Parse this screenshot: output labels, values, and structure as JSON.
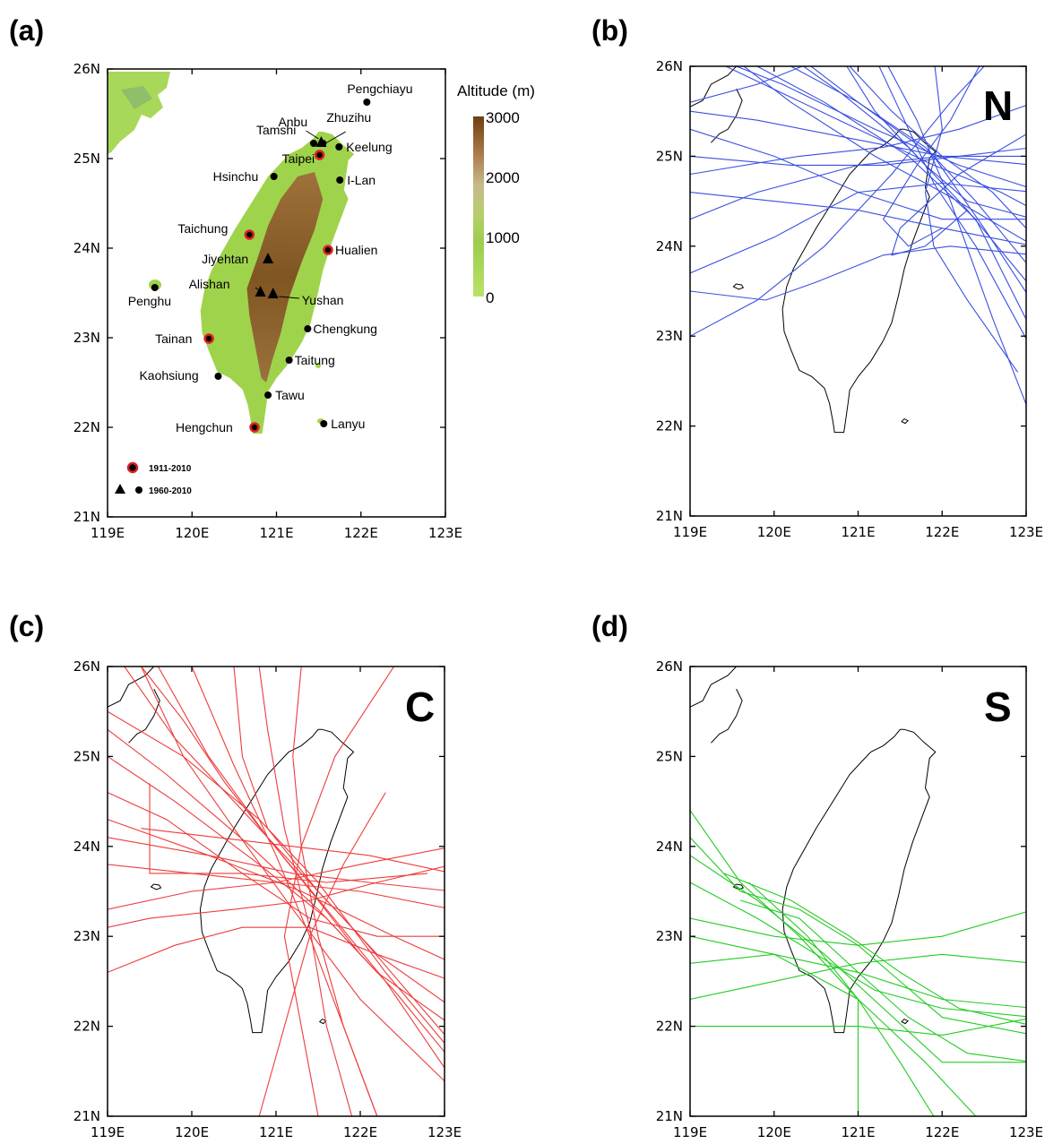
{
  "panels": [
    {
      "id": "a",
      "label": "(a)"
    },
    {
      "id": "b",
      "label": "(b)",
      "letter": "N",
      "track_color": "#3a4fe0"
    },
    {
      "id": "c",
      "label": "(c)",
      "letter": "C",
      "track_color": "#ee3b3b"
    },
    {
      "id": "d",
      "label": "(d)",
      "letter": "S",
      "track_color": "#22cc22"
    }
  ],
  "axes": {
    "lon_ticks": [
      "119E",
      "120E",
      "121E",
      "122E",
      "123E"
    ],
    "lat_ticks": [
      "21N",
      "22N",
      "23N",
      "24N",
      "25N",
      "26N"
    ],
    "lon_range": [
      119,
      123
    ],
    "lat_range": [
      21,
      26
    ]
  },
  "panel_c_last_lon_label": "123E",
  "colorbar": {
    "title": "Altitude (m)",
    "ticks": [
      "3000",
      "2000",
      "1000",
      "0"
    ],
    "colors": [
      "#8c5a1e",
      "#a9784a",
      "#c8b98a",
      "#b5cf6b",
      "#9ccd4e",
      "#b9e26a"
    ]
  },
  "legend": [
    {
      "label": "1911-2010",
      "marker": "red-circle"
    },
    {
      "label": "1960-2010",
      "marker": "triangle-and-dot"
    }
  ],
  "stations": [
    {
      "name": "Pengchiayu",
      "lon": 122.07,
      "lat": 25.63,
      "type": "dot"
    },
    {
      "name": "Anbu",
      "lon": 121.53,
      "lat": 25.18,
      "type": "tri"
    },
    {
      "name": "Zhuzihu",
      "lon": 121.55,
      "lat": 25.17,
      "type": "dot"
    },
    {
      "name": "Tamshi",
      "lon": 121.44,
      "lat": 25.17,
      "type": "dot"
    },
    {
      "name": "Keelung",
      "lon": 121.74,
      "lat": 25.13,
      "type": "dot"
    },
    {
      "name": "Taipei",
      "lon": 121.51,
      "lat": 25.04,
      "type": "red"
    },
    {
      "name": "Hsinchu",
      "lon": 120.97,
      "lat": 24.8,
      "type": "dot"
    },
    {
      "name": "I-Lan",
      "lon": 121.75,
      "lat": 24.76,
      "type": "dot"
    },
    {
      "name": "Taichung",
      "lon": 120.68,
      "lat": 24.15,
      "type": "red"
    },
    {
      "name": "Hualien",
      "lon": 121.61,
      "lat": 23.98,
      "type": "red"
    },
    {
      "name": "Jiyehtan",
      "lon": 120.9,
      "lat": 23.88,
      "type": "tri"
    },
    {
      "name": "Penghu",
      "lon": 119.56,
      "lat": 23.56,
      "type": "dot"
    },
    {
      "name": "Alishan",
      "lon": 120.81,
      "lat": 23.51,
      "type": "tri"
    },
    {
      "name": "Yushan",
      "lon": 120.96,
      "lat": 23.49,
      "type": "tri"
    },
    {
      "name": "Chengkung",
      "lon": 121.37,
      "lat": 23.1,
      "type": "dot"
    },
    {
      "name": "Tainan",
      "lon": 120.2,
      "lat": 22.99,
      "type": "red"
    },
    {
      "name": "Taitung",
      "lon": 121.15,
      "lat": 22.75,
      "type": "dot"
    },
    {
      "name": "Kaohsiung",
      "lon": 120.31,
      "lat": 22.57,
      "type": "dot"
    },
    {
      "name": "Tawu",
      "lon": 120.9,
      "lat": 22.36,
      "type": "dot"
    },
    {
      "name": "Hengchun",
      "lon": 120.74,
      "lat": 22.0,
      "type": "red"
    },
    {
      "name": "Lanyu",
      "lon": 121.56,
      "lat": 22.04,
      "type": "dot"
    }
  ]
}
